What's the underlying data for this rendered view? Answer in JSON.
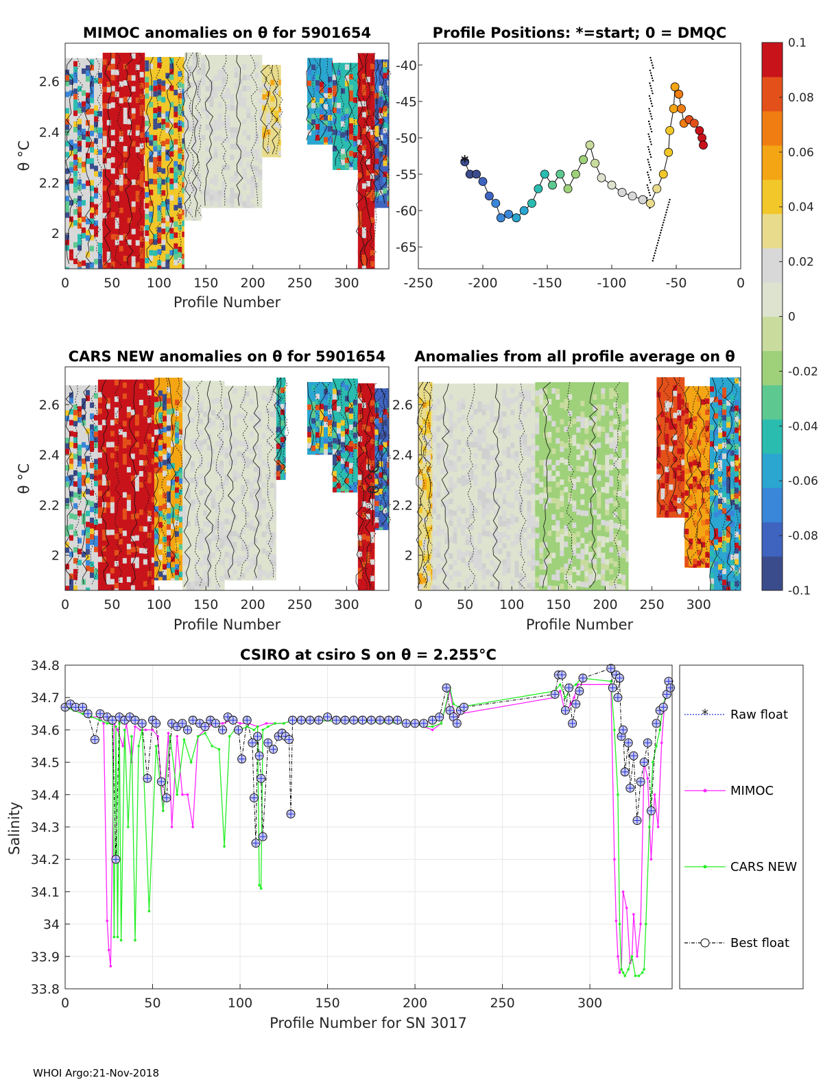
{
  "footer": "WHOI Argo:21-Nov-2018",
  "colors": {
    "raw": "#1f2fd6",
    "mimoc": "#ff22ff",
    "cars": "#22ee22",
    "best": "#000000",
    "cmap": [
      "#3b4c8c",
      "#3f64c0",
      "#3a86d8",
      "#2aa6d0",
      "#2bbcb0",
      "#5ec891",
      "#9ed17a",
      "#c9dc9e",
      "#dde3cf",
      "#d8d8d8",
      "#e8dc8c",
      "#f2c72a",
      "#f4a514",
      "#f07d12",
      "#e4501a",
      "#c8131b"
    ]
  },
  "chart_data": [
    {
      "id": "mimoc_theta",
      "type": "heatmap",
      "title": "MIMOC anomalies on θ  for 5901654",
      "xlabel": "Profile Number",
      "ylabel": "θ °C",
      "xticks": [
        "0",
        "50",
        "100",
        "150",
        "200",
        "250",
        "300"
      ],
      "yticks": [
        "2",
        "2.2",
        "2.4",
        "2.6"
      ],
      "xlim": [
        0,
        345
      ],
      "ylim": [
        1.86,
        2.75
      ],
      "segments": [
        {
          "x": [
            0,
            40
          ],
          "ymin": 1.86,
          "tone": "mixed",
          "level": 0.02
        },
        {
          "x": [
            40,
            85
          ],
          "ymin": 1.86,
          "tone": "red",
          "level": 0.1
        },
        {
          "x": [
            85,
            127
          ],
          "ymin": 1.86,
          "tone": "mixed",
          "level": 0.04
        },
        {
          "x": [
            127,
            145
          ],
          "ymin": 2.05,
          "tone": "gray",
          "level": 0.0
        },
        {
          "x": [
            145,
            210
          ],
          "ymin": 2.1,
          "tone": "gray",
          "level": 0.0
        },
        {
          "x": [
            210,
            230
          ],
          "ymin": 2.3,
          "tone": "yellow",
          "level": 0.03
        },
        {
          "x": [
            258,
            285
          ],
          "ymin": 2.35,
          "tone": "mixed",
          "level": -0.06
        },
        {
          "x": [
            285,
            312
          ],
          "ymin": 2.25,
          "tone": "mixed",
          "level": -0.04
        },
        {
          "x": [
            312,
            330
          ],
          "ymin": 1.86,
          "tone": "red",
          "level": 0.1
        },
        {
          "x": [
            330,
            345
          ],
          "ymin": 2.1,
          "tone": "mixed",
          "level": -0.08
        }
      ]
    },
    {
      "id": "positions",
      "type": "scatter",
      "title": "Profile Positions: *=start; 0 = DMQC",
      "xticks": [
        "-250",
        "-200",
        "-150",
        "-100",
        "-50",
        "0"
      ],
      "yticks": [
        "-40",
        "-45",
        "-50",
        "-55",
        "-60",
        "-65"
      ],
      "xlim": [
        -250,
        0
      ],
      "ylim": [
        -68,
        -37
      ],
      "start": [
        -214,
        -53.3
      ],
      "track": [
        [
          -214,
          -53.3
        ],
        [
          -210,
          -55
        ],
        [
          -205,
          -55
        ],
        [
          -200,
          -56
        ],
        [
          -195,
          -58
        ],
        [
          -190,
          -59
        ],
        [
          -186,
          -61
        ],
        [
          -180,
          -60.5
        ],
        [
          -174,
          -61
        ],
        [
          -168,
          -60
        ],
        [
          -162,
          -59
        ],
        [
          -157,
          -57
        ],
        [
          -152,
          -55
        ],
        [
          -146,
          -56.5
        ],
        [
          -140,
          -55
        ],
        [
          -134,
          -57
        ],
        [
          -128,
          -55
        ],
        [
          -122,
          -53
        ],
        [
          -117,
          -51
        ],
        [
          -113,
          -53.5
        ],
        [
          -108,
          -55.5
        ],
        [
          -100,
          -56.5
        ],
        [
          -92,
          -57.5
        ],
        [
          -84,
          -58
        ],
        [
          -76,
          -58.5
        ],
        [
          -70,
          -59
        ],
        [
          -65,
          -57
        ],
        [
          -60,
          -55
        ],
        [
          -56,
          -52
        ],
        [
          -55,
          -49
        ],
        [
          -52,
          -46
        ],
        [
          -51,
          -43
        ],
        [
          -48,
          -44
        ],
        [
          -46,
          -46
        ],
        [
          -44,
          -48
        ],
        [
          -40,
          -47.5
        ],
        [
          -36,
          -48
        ],
        [
          -32,
          -49
        ],
        [
          -30,
          -50
        ],
        [
          -29,
          -51
        ]
      ]
    },
    {
      "id": "cars_theta",
      "type": "heatmap",
      "title": "CARS NEW anomalies on θ for 5901654",
      "xlabel": "Profile Number",
      "ylabel": "θ °C",
      "xticks": [
        "0",
        "50",
        "100",
        "150",
        "200",
        "250",
        "300"
      ],
      "yticks": [
        "2",
        "2.2",
        "2.4",
        "2.6"
      ],
      "xlim": [
        0,
        345
      ],
      "ylim": [
        1.86,
        2.75
      ],
      "segments": [
        {
          "x": [
            0,
            35
          ],
          "ymin": 1.86,
          "tone": "mixed",
          "level": 0.02
        },
        {
          "x": [
            35,
            95
          ],
          "ymin": 1.86,
          "tone": "red",
          "level": 0.1
        },
        {
          "x": [
            95,
            125
          ],
          "ymin": 1.9,
          "tone": "mixed",
          "level": 0.05
        },
        {
          "x": [
            125,
            170
          ],
          "ymin": 1.86,
          "tone": "gray",
          "level": 0.0
        },
        {
          "x": [
            170,
            225
          ],
          "ymin": 1.9,
          "tone": "gray",
          "level": 0.0
        },
        {
          "x": [
            225,
            235
          ],
          "ymin": 2.3,
          "tone": "mixed",
          "level": -0.05
        },
        {
          "x": [
            258,
            285
          ],
          "ymin": 2.4,
          "tone": "mixed",
          "level": -0.06
        },
        {
          "x": [
            285,
            312
          ],
          "ymin": 2.25,
          "tone": "mixed",
          "level": -0.04
        },
        {
          "x": [
            312,
            330
          ],
          "ymin": 1.86,
          "tone": "red",
          "level": 0.1
        },
        {
          "x": [
            330,
            345
          ],
          "ymin": 2.1,
          "tone": "mixed",
          "level": -0.08
        }
      ]
    },
    {
      "id": "avg_theta",
      "type": "heatmap",
      "title": "Anomalies from all profile average on θ",
      "xlabel": "Profile Number",
      "ylabel": "θ °C",
      "xticks": [
        "0",
        "50",
        "100",
        "150",
        "200",
        "250",
        "300"
      ],
      "yticks": [
        "2",
        "2.2",
        "2.4",
        "2.6"
      ],
      "xlim": [
        0,
        345
      ],
      "ylim": [
        1.86,
        2.75
      ],
      "segments": [
        {
          "x": [
            0,
            15
          ],
          "ymin": 1.86,
          "tone": "yellow",
          "level": 0.03
        },
        {
          "x": [
            15,
            125
          ],
          "ymin": 1.86,
          "tone": "gray",
          "level": 0.0
        },
        {
          "x": [
            125,
            225
          ],
          "ymin": 1.86,
          "tone": "green",
          "level": -0.02
        },
        {
          "x": [
            255,
            285
          ],
          "ymin": 2.15,
          "tone": "red",
          "level": 0.08
        },
        {
          "x": [
            285,
            312
          ],
          "ymin": 1.95,
          "tone": "orange",
          "level": 0.06
        },
        {
          "x": [
            312,
            345
          ],
          "ymin": 1.86,
          "tone": "mixed",
          "level": -0.06
        }
      ]
    },
    {
      "id": "colorbar",
      "type": "heatmap",
      "title": "",
      "ticks": [
        "0.1",
        "0.08",
        "0.06",
        "0.04",
        "0.02",
        "0",
        "-0.02",
        "-0.04",
        "-0.06",
        "-0.08",
        "-0.1"
      ],
      "range": [
        -0.1,
        0.1
      ]
    },
    {
      "id": "salinity",
      "type": "line",
      "title": "CSIRO at csiro S on θ = 2.255°C",
      "xlabel": "Profile Number for SN 3017",
      "ylabel": "Salinity",
      "xticks": [
        "0",
        "50",
        "100",
        "150",
        "200",
        "250",
        "300"
      ],
      "yticks": [
        "34.8",
        "34.7",
        "34.6",
        "34.5",
        "34.4",
        "34.3",
        "34.2",
        "34.1",
        "34",
        "33.9",
        "33.8"
      ],
      "xlim": [
        0,
        347
      ],
      "ylim": [
        33.8,
        34.8
      ],
      "legend": [
        "Raw float",
        "MIMOC",
        "CARS NEW",
        "Best float"
      ],
      "series": [
        {
          "name": "Best float",
          "x": [
            0,
            3,
            6,
            10,
            13,
            17,
            20,
            24,
            27,
            29,
            31,
            34,
            37,
            40,
            44,
            47,
            50,
            52,
            55,
            58,
            61,
            64,
            67,
            70,
            73,
            77,
            80,
            83,
            86,
            90,
            93,
            96,
            99,
            101,
            104,
            107,
            108,
            109,
            110,
            111,
            112,
            113,
            116,
            119,
            122,
            124,
            126,
            128,
            129,
            130,
            135,
            140,
            145,
            150,
            155,
            160,
            165,
            170,
            175,
            180,
            185,
            190,
            195,
            200,
            205,
            210,
            214,
            218,
            220,
            222,
            224,
            226,
            228,
            280,
            282,
            284,
            286,
            288,
            290,
            292,
            294,
            296,
            312,
            313,
            315,
            316,
            317,
            318,
            319,
            320,
            322,
            323,
            325,
            327,
            329,
            331,
            333,
            335,
            338,
            340,
            342,
            344,
            345,
            346
          ],
          "y": [
            34.67,
            34.68,
            34.67,
            34.67,
            34.65,
            34.57,
            34.65,
            34.64,
            34.63,
            34.2,
            34.64,
            34.63,
            34.64,
            34.63,
            34.62,
            34.45,
            34.63,
            34.62,
            34.44,
            34.39,
            34.62,
            34.61,
            34.62,
            34.6,
            34.63,
            34.62,
            34.61,
            34.63,
            34.62,
            34.6,
            34.64,
            34.63,
            34.6,
            34.51,
            34.63,
            34.56,
            34.39,
            34.25,
            34.58,
            34.52,
            34.45,
            34.27,
            34.56,
            34.54,
            34.58,
            34.59,
            34.58,
            34.57,
            34.34,
            34.63,
            34.63,
            34.63,
            34.63,
            34.64,
            34.63,
            34.63,
            34.63,
            34.63,
            34.63,
            34.63,
            34.63,
            34.63,
            34.62,
            34.62,
            34.62,
            34.63,
            34.64,
            34.73,
            34.66,
            34.64,
            34.62,
            34.66,
            34.67,
            34.71,
            34.77,
            34.77,
            34.66,
            34.73,
            34.62,
            34.68,
            34.72,
            34.76,
            34.79,
            34.73,
            34.77,
            34.7,
            34.76,
            34.58,
            34.6,
            34.47,
            34.56,
            34.42,
            34.52,
            34.32,
            34.44,
            34.5,
            34.56,
            34.35,
            34.62,
            34.66,
            34.67,
            34.71,
            34.75,
            34.73
          ]
        },
        {
          "name": "MIMOC",
          "x": [
            0,
            5,
            10,
            15,
            20,
            22,
            24,
            25,
            26,
            28,
            30,
            33,
            35,
            38,
            40,
            43,
            46,
            50,
            53,
            56,
            59,
            61,
            64,
            67,
            70,
            73,
            76,
            80,
            85,
            90,
            95,
            100,
            105,
            110,
            115,
            120,
            125,
            130,
            135,
            200,
            205,
            210,
            215,
            220,
            222,
            224,
            226,
            280,
            283,
            286,
            289,
            291,
            293,
            312,
            314,
            315,
            316,
            317,
            318,
            319,
            321,
            323,
            324,
            325,
            327,
            329,
            331,
            333,
            335,
            337,
            339,
            341,
            343,
            345
          ],
          "y": [
            34.67,
            34.67,
            34.65,
            34.64,
            34.64,
            34.62,
            34.01,
            33.92,
            33.87,
            34.62,
            34.6,
            34.55,
            34.62,
            34.5,
            34.61,
            34.6,
            34.6,
            34.6,
            34.58,
            34.35,
            34.59,
            34.3,
            34.58,
            34.4,
            34.4,
            34.3,
            34.58,
            34.6,
            34.62,
            34.62,
            34.63,
            34.62,
            34.62,
            34.61,
            34.62,
            34.62,
            34.62,
            34.63,
            34.63,
            34.62,
            34.61,
            34.6,
            34.62,
            34.72,
            34.66,
            34.64,
            34.65,
            34.7,
            34.72,
            34.65,
            34.68,
            34.7,
            34.74,
            34.74,
            34.2,
            34.01,
            33.9,
            33.85,
            33.86,
            34.1,
            34.05,
            33.88,
            33.89,
            34.03,
            33.9,
            34.0,
            34.5,
            34.45,
            34.2,
            34.4,
            34.3,
            34.56,
            34.7,
            34.75
          ]
        },
        {
          "name": "CARS NEW",
          "x": [
            0,
            5,
            10,
            15,
            20,
            24,
            26,
            27,
            28,
            29,
            30,
            31,
            32,
            34,
            36,
            38,
            40,
            42,
            44,
            48,
            52,
            56,
            60,
            64,
            68,
            72,
            76,
            80,
            84,
            88,
            91,
            94,
            97,
            100,
            104,
            108,
            110,
            111,
            112,
            113,
            116,
            120,
            125,
            130,
            135,
            200,
            205,
            210,
            215,
            220,
            222,
            225,
            280,
            283,
            286,
            289,
            292,
            295,
            312,
            314,
            316,
            317,
            318,
            319,
            320,
            322,
            324,
            326,
            328,
            330,
            331,
            332,
            334,
            336,
            338,
            340,
            342,
            344,
            345
          ],
          "y": [
            34.67,
            34.66,
            34.65,
            34.64,
            34.63,
            34.62,
            34.62,
            34.63,
            33.96,
            34.61,
            33.96,
            34.62,
            33.95,
            34.6,
            34.3,
            34.58,
            33.95,
            34.55,
            34.6,
            34.04,
            34.55,
            34.35,
            34.58,
            34.4,
            34.57,
            34.5,
            34.58,
            34.59,
            34.55,
            34.54,
            34.24,
            34.58,
            34.6,
            34.6,
            34.61,
            34.6,
            34.61,
            34.12,
            34.11,
            34.6,
            34.61,
            34.62,
            34.62,
            34.63,
            34.63,
            34.62,
            34.61,
            34.61,
            34.62,
            34.73,
            34.68,
            34.67,
            34.72,
            34.74,
            34.7,
            34.73,
            34.74,
            34.76,
            34.75,
            34.6,
            34.4,
            34.0,
            33.86,
            33.85,
            33.84,
            33.86,
            33.9,
            33.84,
            33.84,
            33.85,
            33.86,
            34.0,
            34.3,
            34.5,
            34.55,
            34.6,
            34.68,
            34.72,
            34.74
          ]
        }
      ]
    }
  ]
}
